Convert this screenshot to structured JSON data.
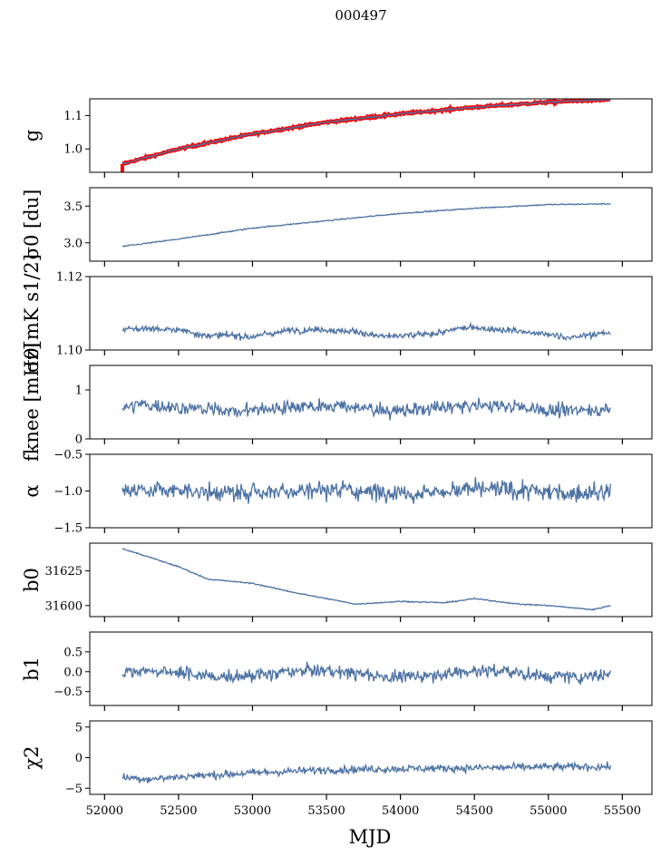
{
  "figure": {
    "title": "000497",
    "xlabel": "MJD"
  },
  "colors": {
    "series": "#4c72a4",
    "overlay": "#ff0000",
    "axis": "#000000"
  },
  "chart_data": {
    "type": "line",
    "xlim": [
      51900,
      55700
    ],
    "xticks": [
      52000,
      52500,
      53000,
      53500,
      54000,
      54500,
      55000,
      55500
    ],
    "xtick_labels": [
      "52000",
      "52500",
      "53000",
      "53500",
      "54000",
      "54500",
      "55000",
      "55500"
    ],
    "x_start": 52120,
    "x_end": 55420,
    "panels": [
      {
        "id": "g",
        "ylabel": "g",
        "ylim": [
          0.93,
          1.15
        ],
        "yticks": [
          1.0,
          1.1
        ],
        "ytick_labels": [
          "1.0",
          "1.1"
        ],
        "shape": "trend",
        "anchors": [
          [
            52120,
            0.955
          ],
          [
            52500,
            1.0
          ],
          [
            53000,
            1.045
          ],
          [
            53500,
            1.08
          ],
          [
            54000,
            1.105
          ],
          [
            54500,
            1.125
          ],
          [
            55000,
            1.14
          ],
          [
            55420,
            1.148
          ]
        ],
        "noise": 0.002,
        "overlay": true
      },
      {
        "id": "sigma0_du",
        "ylabel": "σ0 [du]",
        "ylim": [
          2.75,
          3.75
        ],
        "yticks": [
          3.0,
          3.5
        ],
        "ytick_labels": [
          "3.0",
          "3.5"
        ],
        "shape": "trend",
        "anchors": [
          [
            52120,
            2.95
          ],
          [
            52500,
            3.05
          ],
          [
            53000,
            3.2
          ],
          [
            53500,
            3.3
          ],
          [
            54000,
            3.4
          ],
          [
            54500,
            3.47
          ],
          [
            55000,
            3.52
          ],
          [
            55420,
            3.53
          ]
        ],
        "noise": 0.006
      },
      {
        "id": "sigma0_mk",
        "ylabel": "σ0[mK s1/2]",
        "ylim": [
          1.1,
          1.12
        ],
        "yticks": [
          1.1,
          1.12
        ],
        "ytick_labels": [
          "1.10",
          "1.12"
        ],
        "shape": "noise",
        "mean": 1.1048,
        "amplitude": 0.0012,
        "noise": 0.0006
      },
      {
        "id": "fknee",
        "ylabel": "fknee [mHz]",
        "ylim": [
          0,
          1.5
        ],
        "yticks": [
          0,
          1
        ],
        "ytick_labels": [
          "0",
          "1"
        ],
        "shape": "noise",
        "mean": 0.63,
        "amplitude": 0.05,
        "noise": 0.1
      },
      {
        "id": "alpha",
        "ylabel": "α",
        "ylim": [
          -1.5,
          -0.5
        ],
        "yticks": [
          -1.5,
          -1.0,
          -0.5
        ],
        "ytick_labels": [
          "−1.5",
          "−1.0",
          "−0.5"
        ],
        "shape": "noise",
        "mean": -1.0,
        "amplitude": 0.02,
        "noise": 0.09
      },
      {
        "id": "b0",
        "ylabel": "b0",
        "ylim": [
          31592,
          31645
        ],
        "yticks": [
          31600,
          31625
        ],
        "ytick_labels": [
          "31600",
          "31625"
        ],
        "shape": "trend",
        "anchors": [
          [
            52120,
            31641
          ],
          [
            52300,
            31635
          ],
          [
            52500,
            31628
          ],
          [
            52700,
            31619
          ],
          [
            53000,
            31616
          ],
          [
            53300,
            31609
          ],
          [
            53700,
            31601
          ],
          [
            54000,
            31603
          ],
          [
            54300,
            31602
          ],
          [
            54500,
            31605
          ],
          [
            54800,
            31601
          ],
          [
            55000,
            31600
          ],
          [
            55200,
            31598
          ],
          [
            55300,
            31597
          ],
          [
            55420,
            31600
          ]
        ],
        "noise": 0.3
      },
      {
        "id": "b1",
        "ylabel": "b1",
        "ylim": [
          -0.85,
          1.0
        ],
        "yticks": [
          -0.5,
          0.0,
          0.5
        ],
        "ytick_labels": [
          "−0.5",
          "0.0",
          "0.5"
        ],
        "shape": "noise",
        "mean": -0.05,
        "amplitude": 0.08,
        "noise": 0.12
      },
      {
        "id": "chi2",
        "ylabel": "χ2",
        "ylim": [
          -6,
          6
        ],
        "yticks": [
          -5,
          0,
          5
        ],
        "ytick_labels": [
          "−5",
          "0",
          "5"
        ],
        "shape": "trend",
        "anchors": [
          [
            52120,
            -3.2
          ],
          [
            52300,
            -3.5
          ],
          [
            52600,
            -3.0
          ],
          [
            53000,
            -2.5
          ],
          [
            53500,
            -2.0
          ],
          [
            54000,
            -1.8
          ],
          [
            54500,
            -1.7
          ],
          [
            55000,
            -1.5
          ],
          [
            55420,
            -1.5
          ]
        ],
        "noise": 0.45
      }
    ]
  }
}
